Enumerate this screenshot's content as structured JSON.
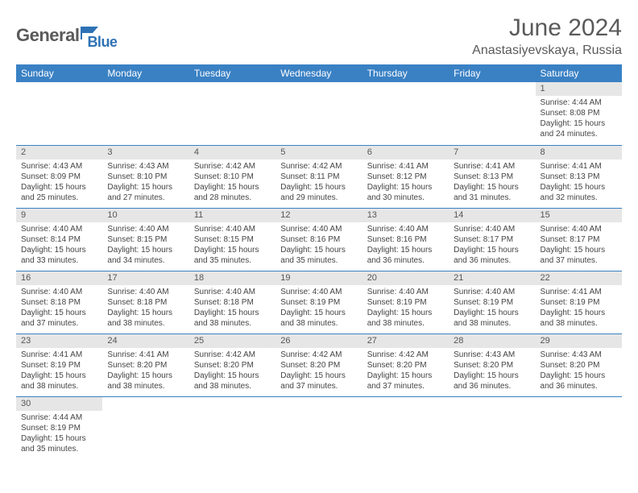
{
  "brand": {
    "part1": "General",
    "part2": "Blue",
    "flag_color": "#2e72b5"
  },
  "title": "June 2024",
  "location": "Anastasiyevskaya, Russia",
  "colors": {
    "header_bg": "#3a81c4",
    "header_fg": "#ffffff",
    "daynum_bg": "#e6e6e6",
    "row_border": "#3a81c4",
    "text": "#444444",
    "title_color": "#5a5a5a"
  },
  "typography": {
    "title_fontsize": 30,
    "location_fontsize": 16,
    "dayheader_fontsize": 12,
    "daynum_fontsize": 11,
    "cell_fontsize": 10
  },
  "table": {
    "columns": [
      "Sunday",
      "Monday",
      "Tuesday",
      "Wednesday",
      "Thursday",
      "Friday",
      "Saturday"
    ],
    "rows": [
      [
        null,
        null,
        null,
        null,
        null,
        null,
        {
          "n": "1",
          "sunrise": "4:44 AM",
          "sunset": "8:08 PM",
          "day_h": 15,
          "day_m": 24
        }
      ],
      [
        {
          "n": "2",
          "sunrise": "4:43 AM",
          "sunset": "8:09 PM",
          "day_h": 15,
          "day_m": 25
        },
        {
          "n": "3",
          "sunrise": "4:43 AM",
          "sunset": "8:10 PM",
          "day_h": 15,
          "day_m": 27
        },
        {
          "n": "4",
          "sunrise": "4:42 AM",
          "sunset": "8:10 PM",
          "day_h": 15,
          "day_m": 28
        },
        {
          "n": "5",
          "sunrise": "4:42 AM",
          "sunset": "8:11 PM",
          "day_h": 15,
          "day_m": 29
        },
        {
          "n": "6",
          "sunrise": "4:41 AM",
          "sunset": "8:12 PM",
          "day_h": 15,
          "day_m": 30
        },
        {
          "n": "7",
          "sunrise": "4:41 AM",
          "sunset": "8:13 PM",
          "day_h": 15,
          "day_m": 31
        },
        {
          "n": "8",
          "sunrise": "4:41 AM",
          "sunset": "8:13 PM",
          "day_h": 15,
          "day_m": 32
        }
      ],
      [
        {
          "n": "9",
          "sunrise": "4:40 AM",
          "sunset": "8:14 PM",
          "day_h": 15,
          "day_m": 33
        },
        {
          "n": "10",
          "sunrise": "4:40 AM",
          "sunset": "8:15 PM",
          "day_h": 15,
          "day_m": 34
        },
        {
          "n": "11",
          "sunrise": "4:40 AM",
          "sunset": "8:15 PM",
          "day_h": 15,
          "day_m": 35
        },
        {
          "n": "12",
          "sunrise": "4:40 AM",
          "sunset": "8:16 PM",
          "day_h": 15,
          "day_m": 35
        },
        {
          "n": "13",
          "sunrise": "4:40 AM",
          "sunset": "8:16 PM",
          "day_h": 15,
          "day_m": 36
        },
        {
          "n": "14",
          "sunrise": "4:40 AM",
          "sunset": "8:17 PM",
          "day_h": 15,
          "day_m": 36
        },
        {
          "n": "15",
          "sunrise": "4:40 AM",
          "sunset": "8:17 PM",
          "day_h": 15,
          "day_m": 37
        }
      ],
      [
        {
          "n": "16",
          "sunrise": "4:40 AM",
          "sunset": "8:18 PM",
          "day_h": 15,
          "day_m": 37
        },
        {
          "n": "17",
          "sunrise": "4:40 AM",
          "sunset": "8:18 PM",
          "day_h": 15,
          "day_m": 38
        },
        {
          "n": "18",
          "sunrise": "4:40 AM",
          "sunset": "8:18 PM",
          "day_h": 15,
          "day_m": 38
        },
        {
          "n": "19",
          "sunrise": "4:40 AM",
          "sunset": "8:19 PM",
          "day_h": 15,
          "day_m": 38
        },
        {
          "n": "20",
          "sunrise": "4:40 AM",
          "sunset": "8:19 PM",
          "day_h": 15,
          "day_m": 38
        },
        {
          "n": "21",
          "sunrise": "4:40 AM",
          "sunset": "8:19 PM",
          "day_h": 15,
          "day_m": 38
        },
        {
          "n": "22",
          "sunrise": "4:41 AM",
          "sunset": "8:19 PM",
          "day_h": 15,
          "day_m": 38
        }
      ],
      [
        {
          "n": "23",
          "sunrise": "4:41 AM",
          "sunset": "8:19 PM",
          "day_h": 15,
          "day_m": 38
        },
        {
          "n": "24",
          "sunrise": "4:41 AM",
          "sunset": "8:20 PM",
          "day_h": 15,
          "day_m": 38
        },
        {
          "n": "25",
          "sunrise": "4:42 AM",
          "sunset": "8:20 PM",
          "day_h": 15,
          "day_m": 38
        },
        {
          "n": "26",
          "sunrise": "4:42 AM",
          "sunset": "8:20 PM",
          "day_h": 15,
          "day_m": 37
        },
        {
          "n": "27",
          "sunrise": "4:42 AM",
          "sunset": "8:20 PM",
          "day_h": 15,
          "day_m": 37
        },
        {
          "n": "28",
          "sunrise": "4:43 AM",
          "sunset": "8:20 PM",
          "day_h": 15,
          "day_m": 36
        },
        {
          "n": "29",
          "sunrise": "4:43 AM",
          "sunset": "8:20 PM",
          "day_h": 15,
          "day_m": 36
        }
      ],
      [
        {
          "n": "30",
          "sunrise": "4:44 AM",
          "sunset": "8:19 PM",
          "day_h": 15,
          "day_m": 35
        },
        null,
        null,
        null,
        null,
        null,
        null
      ]
    ]
  },
  "labels": {
    "sunrise": "Sunrise:",
    "sunset": "Sunset:",
    "daylight_prefix": "Daylight:",
    "hours_word": "hours",
    "and_word": "and",
    "minutes_word": "minutes."
  }
}
